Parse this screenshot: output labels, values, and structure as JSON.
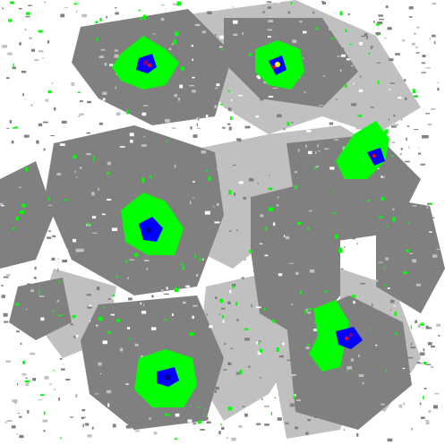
{
  "image": {
    "kind": "classified segmentation map",
    "palette": {
      "background": "#ffffff",
      "dark_gray": "#808080",
      "light_gray": "#c0c0c0",
      "green": "#00ff00",
      "blue": "#0000ff",
      "navy": "#000080",
      "red": "#ff0000",
      "purple": "#800080",
      "yellow": "#ffff00"
    },
    "hotspot_count": 6
  }
}
